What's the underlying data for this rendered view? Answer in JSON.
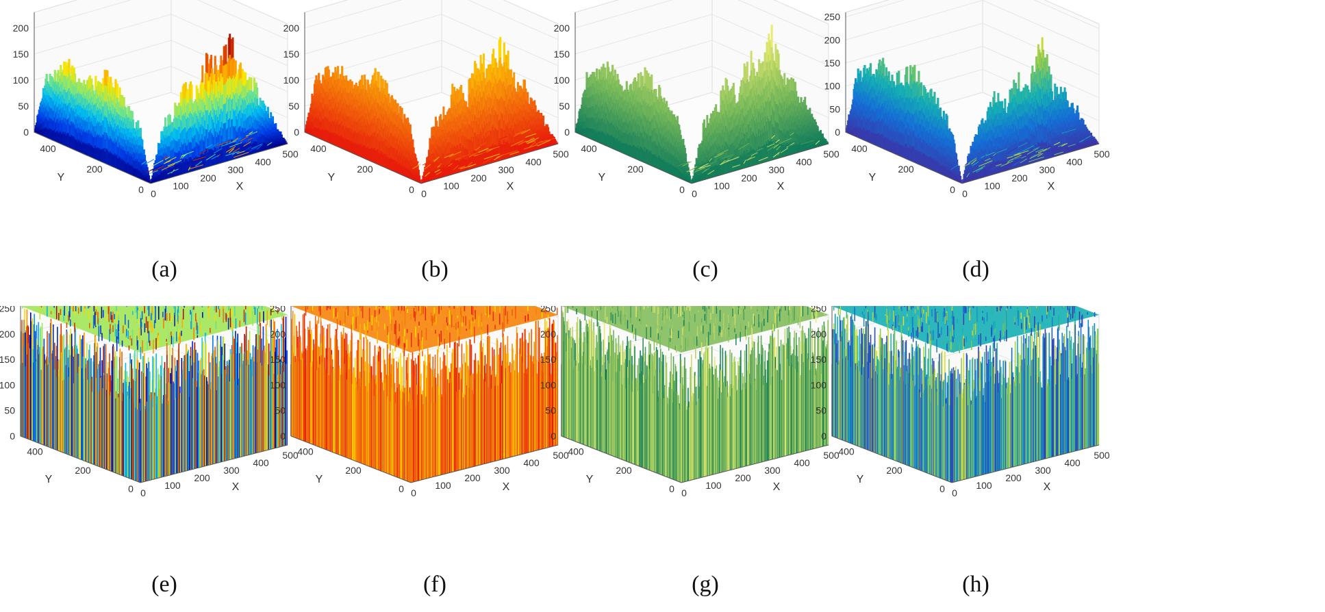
{
  "figure": {
    "panels": [
      {
        "id": "a",
        "caption": "(a)",
        "colormap": "jet",
        "style": "surface",
        "z_ticks": [
          "0",
          "50",
          "100",
          "150",
          "200"
        ],
        "zmax": 230
      },
      {
        "id": "b",
        "caption": "(b)",
        "colormap": "autumn",
        "style": "surface",
        "z_ticks": [
          "0",
          "50",
          "100",
          "150",
          "200"
        ],
        "zmax": 230
      },
      {
        "id": "c",
        "caption": "(c)",
        "colormap": "summer",
        "style": "surface",
        "z_ticks": [
          "0",
          "50",
          "100",
          "150",
          "200"
        ],
        "zmax": 230
      },
      {
        "id": "d",
        "caption": "(d)",
        "colormap": "parula",
        "style": "surface",
        "z_ticks": [
          "0",
          "50",
          "100",
          "150",
          "200",
          "250"
        ],
        "zmax": 260
      },
      {
        "id": "e",
        "caption": "(e)",
        "colormap": "jet",
        "style": "noise",
        "z_ticks": [
          "0",
          "50",
          "100",
          "150",
          "200",
          "250"
        ],
        "zmax": 260
      },
      {
        "id": "f",
        "caption": "(f)",
        "colormap": "autumn",
        "style": "noise",
        "z_ticks": [
          "0",
          "50",
          "100",
          "150",
          "200",
          "250"
        ],
        "zmax": 260
      },
      {
        "id": "g",
        "caption": "(g)",
        "colormap": "summer",
        "style": "noise",
        "z_ticks": [
          "0",
          "50",
          "100",
          "150",
          "200",
          "250"
        ],
        "zmax": 260
      },
      {
        "id": "h",
        "caption": "(h)",
        "colormap": "parula",
        "style": "noise",
        "z_ticks": [
          "0",
          "50",
          "100",
          "150",
          "200",
          "250"
        ],
        "zmax": 260
      }
    ],
    "x_ticks": [
      "0",
      "100",
      "200",
      "300",
      "400",
      "500"
    ],
    "y_ticks": [
      "0",
      "200",
      "400"
    ],
    "xlabel": "X",
    "ylabel": "Y"
  },
  "chart_data": [
    {
      "type": "surface3d",
      "panel": "a",
      "colormap": "jet",
      "xlabel": "X",
      "ylabel": "Y",
      "xlim": [
        0,
        500
      ],
      "ylim": [
        0,
        500
      ],
      "zlim": [
        0,
        230
      ],
      "z_ticks": [
        0,
        50,
        100,
        150,
        200
      ],
      "x_ticks": [
        0,
        100,
        200,
        300,
        400,
        500
      ],
      "y_ticks": [
        0,
        200,
        400
      ],
      "front_x_edge_profile_approx": [
        0,
        100,
        120,
        165,
        140,
        200,
        180,
        230,
        150,
        130,
        90,
        40,
        0
      ],
      "back_y_edge_profile_approx": [
        0,
        110,
        130,
        150,
        120,
        140,
        160,
        150,
        120,
        100,
        0
      ]
    },
    {
      "type": "surface3d",
      "panel": "b",
      "colormap": "autumn",
      "xlabel": "X",
      "ylabel": "Y",
      "xlim": [
        0,
        500
      ],
      "ylim": [
        0,
        500
      ],
      "zlim": [
        0,
        230
      ],
      "z_ticks": [
        0,
        50,
        100,
        150,
        200
      ],
      "x_ticks": [
        0,
        100,
        200,
        300,
        400,
        500
      ],
      "y_ticks": [
        0,
        200,
        400
      ],
      "front_x_edge_profile_approx": [
        0,
        100,
        120,
        165,
        140,
        200,
        180,
        230,
        150,
        130,
        90,
        40,
        0
      ],
      "back_y_edge_profile_approx": [
        0,
        110,
        130,
        150,
        120,
        140,
        160,
        150,
        120,
        100,
        0
      ]
    },
    {
      "type": "surface3d",
      "panel": "c",
      "colormap": "summer",
      "xlabel": "X",
      "ylabel": "Y",
      "xlim": [
        0,
        500
      ],
      "ylim": [
        0,
        500
      ],
      "zlim": [
        0,
        230
      ],
      "z_ticks": [
        0,
        50,
        100,
        150,
        200
      ],
      "x_ticks": [
        0,
        100,
        200,
        300,
        400,
        500
      ],
      "y_ticks": [
        0,
        200,
        400
      ],
      "front_x_edge_profile_approx": [
        0,
        100,
        120,
        165,
        140,
        200,
        180,
        230,
        150,
        130,
        90,
        40,
        0
      ],
      "back_y_edge_profile_approx": [
        0,
        110,
        130,
        150,
        120,
        140,
        160,
        150,
        120,
        100,
        0
      ]
    },
    {
      "type": "surface3d",
      "panel": "d",
      "colormap": "parula",
      "xlabel": "X",
      "ylabel": "Y",
      "xlim": [
        0,
        500
      ],
      "ylim": [
        0,
        500
      ],
      "zlim": [
        0,
        260
      ],
      "z_ticks": [
        0,
        50,
        100,
        150,
        200,
        250
      ],
      "x_ticks": [
        0,
        100,
        200,
        300,
        400,
        500
      ],
      "y_ticks": [
        0,
        200,
        400
      ],
      "front_x_edge_profile_approx": [
        0,
        100,
        120,
        165,
        140,
        200,
        180,
        240,
        150,
        130,
        90,
        40,
        0
      ],
      "back_y_edge_profile_approx": [
        0,
        130,
        150,
        180,
        150,
        170,
        190,
        170,
        140,
        110,
        0
      ]
    },
    {
      "type": "surface3d",
      "panel": "e",
      "colormap": "jet",
      "description_values": "uniform random heights",
      "xlabel": "X",
      "ylabel": "Y",
      "xlim": [
        0,
        500
      ],
      "ylim": [
        0,
        500
      ],
      "zlim": [
        0,
        255
      ],
      "z_ticks": [
        0,
        50,
        100,
        150,
        200,
        250
      ],
      "x_ticks": [
        0,
        100,
        200,
        300,
        400,
        500
      ],
      "y_ticks": [
        0,
        200,
        400
      ]
    },
    {
      "type": "surface3d",
      "panel": "f",
      "colormap": "autumn",
      "description_values": "uniform random heights",
      "xlabel": "X",
      "ylabel": "Y",
      "xlim": [
        0,
        500
      ],
      "ylim": [
        0,
        500
      ],
      "zlim": [
        0,
        255
      ],
      "z_ticks": [
        0,
        50,
        100,
        150,
        200,
        250
      ],
      "x_ticks": [
        0,
        100,
        200,
        300,
        400,
        500
      ],
      "y_ticks": [
        0,
        200,
        400
      ]
    },
    {
      "type": "surface3d",
      "panel": "g",
      "colormap": "summer",
      "description_values": "uniform random heights",
      "xlabel": "X",
      "ylabel": "Y",
      "xlim": [
        0,
        500
      ],
      "ylim": [
        0,
        500
      ],
      "zlim": [
        0,
        255
      ],
      "z_ticks": [
        0,
        50,
        100,
        150,
        200,
        250
      ],
      "x_ticks": [
        0,
        100,
        200,
        300,
        400,
        500
      ],
      "y_ticks": [
        0,
        200,
        400
      ]
    },
    {
      "type": "surface3d",
      "panel": "h",
      "colormap": "parula",
      "description_values": "uniform random heights",
      "xlabel": "X",
      "ylabel": "Y",
      "xlim": [
        0,
        500
      ],
      "ylim": [
        0,
        500
      ],
      "zlim": [
        0,
        255
      ],
      "z_ticks": [
        0,
        50,
        100,
        150,
        200,
        250
      ],
      "x_ticks": [
        0,
        100,
        200,
        300,
        400,
        500
      ],
      "y_ticks": [
        0,
        200,
        400
      ]
    }
  ]
}
